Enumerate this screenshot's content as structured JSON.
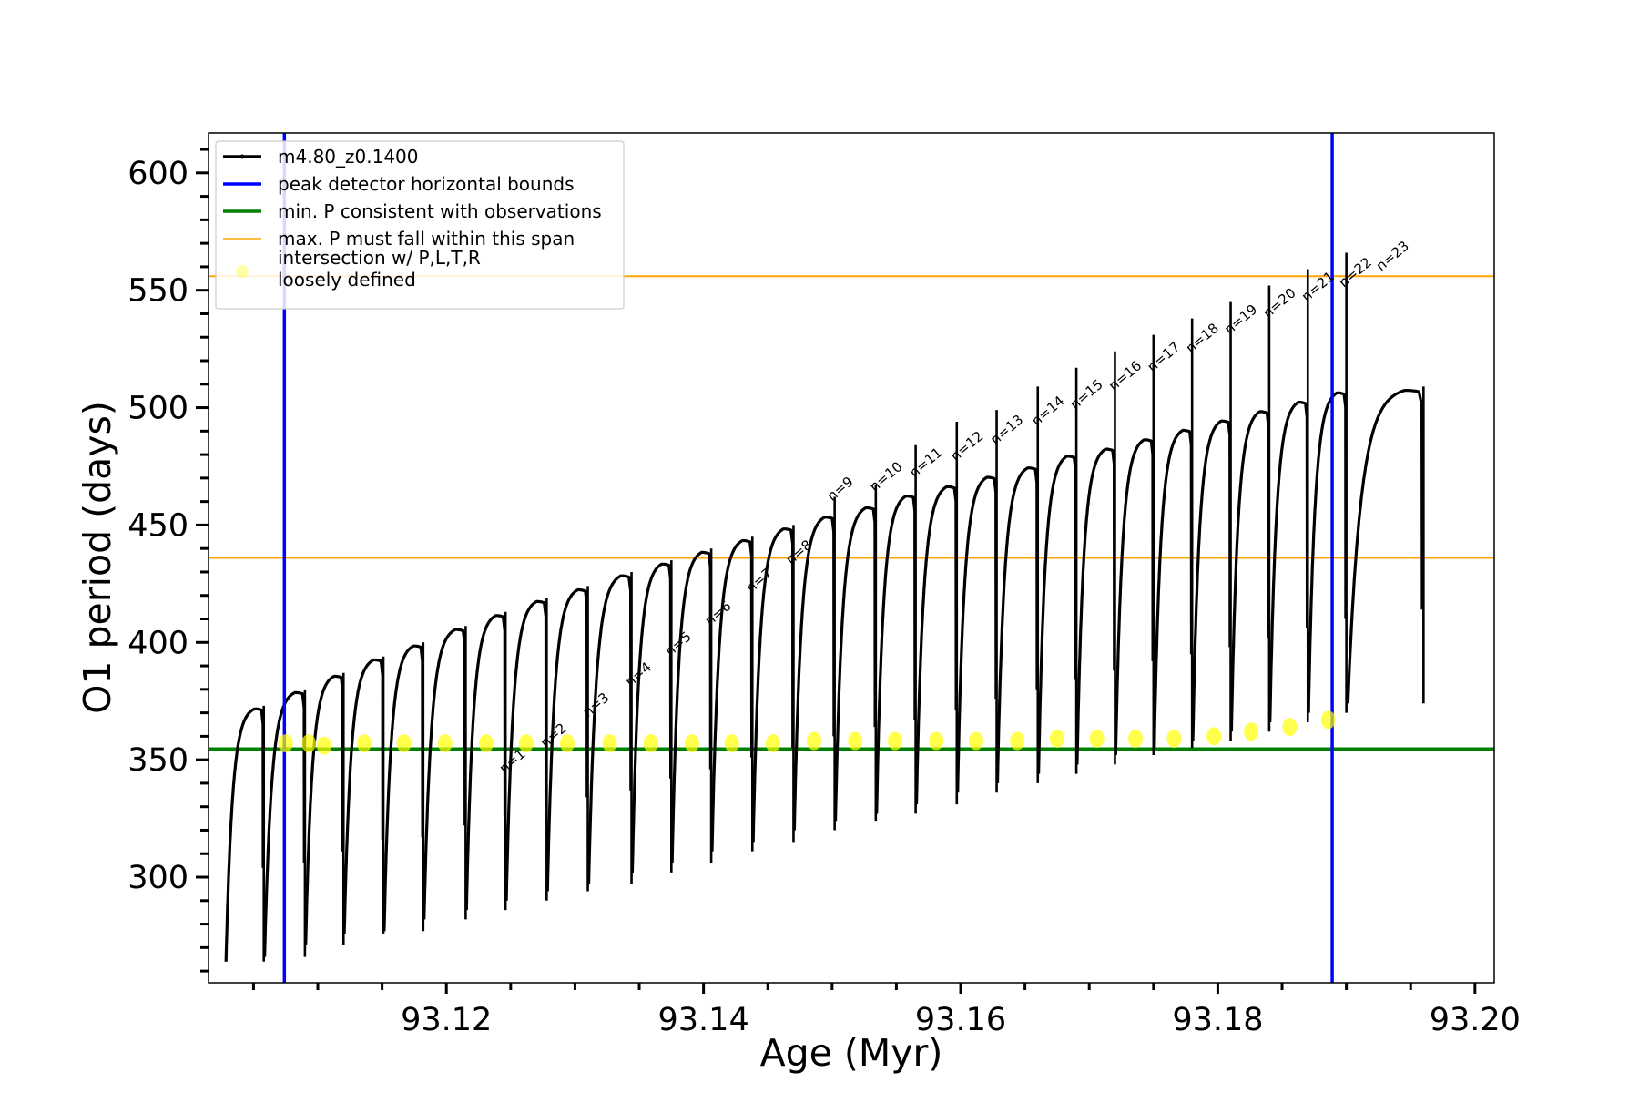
{
  "chart_data": {
    "type": "line",
    "title": "",
    "xlabel": "Age (Myr)",
    "ylabel": "O1 period (days)",
    "xlim": [
      93.1015,
      93.2015
    ],
    "ylim": [
      255,
      617
    ],
    "x_major_ticks": [
      93.12,
      93.14,
      93.16,
      93.18,
      93.2
    ],
    "x_tick_labels": [
      "93.12",
      "93.14",
      "93.16",
      "93.18",
      "93.20"
    ],
    "x_minor_ticks": [
      93.105,
      93.11,
      93.115,
      93.125,
      93.13,
      93.135,
      93.145,
      93.15,
      93.155,
      93.165,
      93.17,
      93.175,
      93.185,
      93.19,
      93.195
    ],
    "y_major_ticks": [
      300,
      350,
      400,
      450,
      500,
      550,
      600
    ],
    "y_tick_labels": [
      "300",
      "350",
      "400",
      "450",
      "500",
      "550",
      "600"
    ],
    "y_minor_step": 10,
    "grid": false,
    "legend": {
      "position": "top-left",
      "entries": [
        {
          "label": "m4.80_z0.1400",
          "style": "line-marker",
          "color": "#000000"
        },
        {
          "label": "peak detector horizontal bounds",
          "style": "line",
          "color": "#0000ff"
        },
        {
          "label": "min. P consistent with observations",
          "style": "line",
          "color": "#008000"
        },
        {
          "label": "max. P must fall within this span",
          "style": "line",
          "color": "#ffa500"
        },
        {
          "label": "intersection w/ P,L,T,R\nloosely defined",
          "label_lines": [
            "intersection w/ P,L,T,R",
            "loosely defined"
          ],
          "style": "marker",
          "color": "#ffff00"
        }
      ]
    },
    "series": [
      {
        "name": "m4.80_z0.1400",
        "color": "#000000",
        "pulses": [
          {
            "start": 93.1028,
            "end": 93.1058,
            "min": 264,
            "plateau": 373,
            "spike": null
          },
          {
            "start": 93.1058,
            "end": 93.109,
            "min": 266,
            "plateau": 380,
            "spike": null
          },
          {
            "start": 93.109,
            "end": 93.112,
            "min": 271,
            "plateau": 387,
            "spike": null
          },
          {
            "start": 93.112,
            "end": 93.1151,
            "min": 276,
            "plateau": 394,
            "spike": null
          },
          {
            "start": 93.1151,
            "end": 93.1182,
            "min": 277,
            "plateau": 400,
            "spike": null
          },
          {
            "start": 93.1182,
            "end": 93.1215,
            "min": 282,
            "plateau": 407,
            "spike": null
          },
          {
            "start": 93.1215,
            "end": 93.1246,
            "min": 286,
            "plateau": 413,
            "spike": null
          },
          {
            "start": 93.1246,
            "end": 93.1278,
            "min": 290,
            "plateau": 419,
            "spike": null
          },
          {
            "start": 93.1278,
            "end": 93.131,
            "min": 294,
            "plateau": 424,
            "spike": null
          },
          {
            "start": 93.131,
            "end": 93.1344,
            "min": 297,
            "plateau": 430,
            "spike": null
          },
          {
            "start": 93.1344,
            "end": 93.1375,
            "min": 302,
            "plateau": 435,
            "spike": null
          },
          {
            "start": 93.1375,
            "end": 93.1406,
            "min": 306,
            "plateau": 440,
            "spike": null
          },
          {
            "start": 93.1406,
            "end": 93.1438,
            "min": 311,
            "plateau": 445,
            "spike": null
          },
          {
            "start": 93.1438,
            "end": 93.147,
            "min": 315,
            "plateau": 450,
            "spike": null
          },
          {
            "start": 93.147,
            "end": 93.1502,
            "min": 320,
            "plateau": 455,
            "spike": 462
          },
          {
            "start": 93.1502,
            "end": 93.1534,
            "min": 324,
            "plateau": 459,
            "spike": 467
          },
          {
            "start": 93.1534,
            "end": 93.1565,
            "min": 327,
            "plateau": 464,
            "spike": 484
          },
          {
            "start": 93.1565,
            "end": 93.1597,
            "min": 331,
            "plateau": 468,
            "spike": 494
          },
          {
            "start": 93.1597,
            "end": 93.1628,
            "min": 336,
            "plateau": 472,
            "spike": 499
          },
          {
            "start": 93.1628,
            "end": 93.166,
            "min": 340,
            "plateau": 476,
            "spike": 509
          },
          {
            "start": 93.166,
            "end": 93.169,
            "min": 344,
            "plateau": 481,
            "spike": 517
          },
          {
            "start": 93.169,
            "end": 93.172,
            "min": 348,
            "plateau": 484,
            "spike": 524
          },
          {
            "start": 93.172,
            "end": 93.175,
            "min": 352,
            "plateau": 488,
            "spike": 531
          },
          {
            "start": 93.175,
            "end": 93.178,
            "min": 355,
            "plateau": 492,
            "spike": 538
          },
          {
            "start": 93.178,
            "end": 93.181,
            "min": 358,
            "plateau": 496,
            "spike": 545
          },
          {
            "start": 93.181,
            "end": 93.184,
            "min": 362,
            "plateau": 500,
            "spike": 552
          },
          {
            "start": 93.184,
            "end": 93.187,
            "min": 366,
            "plateau": 504,
            "spike": 559
          },
          {
            "start": 93.187,
            "end": 93.19,
            "min": 370,
            "plateau": 508,
            "spike": 566
          },
          {
            "start": 93.19,
            "end": 93.196,
            "min": 374,
            "plateau": 509,
            "spike": null
          }
        ]
      }
    ],
    "vertical_lines": [
      {
        "name": "peak detector horizontal bounds",
        "x": 93.1074,
        "color": "#0000ff"
      },
      {
        "name": "peak detector horizontal bounds",
        "x": 93.1889,
        "color": "#0000ff"
      }
    ],
    "horizontal_lines": [
      {
        "name": "min. P consistent with observations",
        "y": 354.5,
        "color": "#008000"
      },
      {
        "name": "max. P must fall within this span (lower)",
        "y": 436,
        "color": "#ffa500"
      },
      {
        "name": "max. P must fall within this span (upper)",
        "y": 556,
        "color": "#ffa500"
      }
    ],
    "intersections": [
      {
        "x": 93.1075,
        "y": 357
      },
      {
        "x": 93.1093,
        "y": 357
      },
      {
        "x": 93.1105,
        "y": 356
      },
      {
        "x": 93.1136,
        "y": 357
      },
      {
        "x": 93.1167,
        "y": 357
      },
      {
        "x": 93.1199,
        "y": 357
      },
      {
        "x": 93.1231,
        "y": 357
      },
      {
        "x": 93.1262,
        "y": 357
      },
      {
        "x": 93.1294,
        "y": 357
      },
      {
        "x": 93.1327,
        "y": 357
      },
      {
        "x": 93.1359,
        "y": 357
      },
      {
        "x": 93.1391,
        "y": 357
      },
      {
        "x": 93.1422,
        "y": 357
      },
      {
        "x": 93.1454,
        "y": 357
      },
      {
        "x": 93.1486,
        "y": 358
      },
      {
        "x": 93.1518,
        "y": 358
      },
      {
        "x": 93.1549,
        "y": 358
      },
      {
        "x": 93.1581,
        "y": 358
      },
      {
        "x": 93.1612,
        "y": 358
      },
      {
        "x": 93.1644,
        "y": 358
      },
      {
        "x": 93.1675,
        "y": 359
      },
      {
        "x": 93.1706,
        "y": 359
      },
      {
        "x": 93.1736,
        "y": 359
      },
      {
        "x": 93.1766,
        "y": 359
      },
      {
        "x": 93.1797,
        "y": 360
      },
      {
        "x": 93.1826,
        "y": 362
      },
      {
        "x": 93.1856,
        "y": 364
      },
      {
        "x": 93.1886,
        "y": 367
      }
    ],
    "annotations": [
      {
        "text": "n=1",
        "x": 93.1245,
        "y": 344
      },
      {
        "text": "n=2",
        "x": 93.1277,
        "y": 355
      },
      {
        "text": "n=3",
        "x": 93.131,
        "y": 368
      },
      {
        "text": "n=4",
        "x": 93.1343,
        "y": 381
      },
      {
        "text": "n=5",
        "x": 93.1374,
        "y": 394
      },
      {
        "text": "n=6",
        "x": 93.1405,
        "y": 407
      },
      {
        "text": "n=7",
        "x": 93.1437,
        "y": 421
      },
      {
        "text": "n=8",
        "x": 93.1468,
        "y": 433
      },
      {
        "text": "n=9",
        "x": 93.15,
        "y": 460
      },
      {
        "text": "n=10",
        "x": 93.1533,
        "y": 464
      },
      {
        "text": "n=11",
        "x": 93.1564,
        "y": 470
      },
      {
        "text": "n=12",
        "x": 93.1596,
        "y": 477
      },
      {
        "text": "n=13",
        "x": 93.1627,
        "y": 484
      },
      {
        "text": "n=14",
        "x": 93.1659,
        "y": 492
      },
      {
        "text": "n=15",
        "x": 93.1689,
        "y": 499
      },
      {
        "text": "n=16",
        "x": 93.1719,
        "y": 507
      },
      {
        "text": "n=17",
        "x": 93.1749,
        "y": 515
      },
      {
        "text": "n=18",
        "x": 93.1779,
        "y": 523
      },
      {
        "text": "n=19",
        "x": 93.1809,
        "y": 531
      },
      {
        "text": "n=20",
        "x": 93.1839,
        "y": 538
      },
      {
        "text": "n=21",
        "x": 93.1869,
        "y": 545
      },
      {
        "text": "n=22",
        "x": 93.1898,
        "y": 551
      },
      {
        "text": "n=23",
        "x": 93.1927,
        "y": 558
      }
    ]
  }
}
